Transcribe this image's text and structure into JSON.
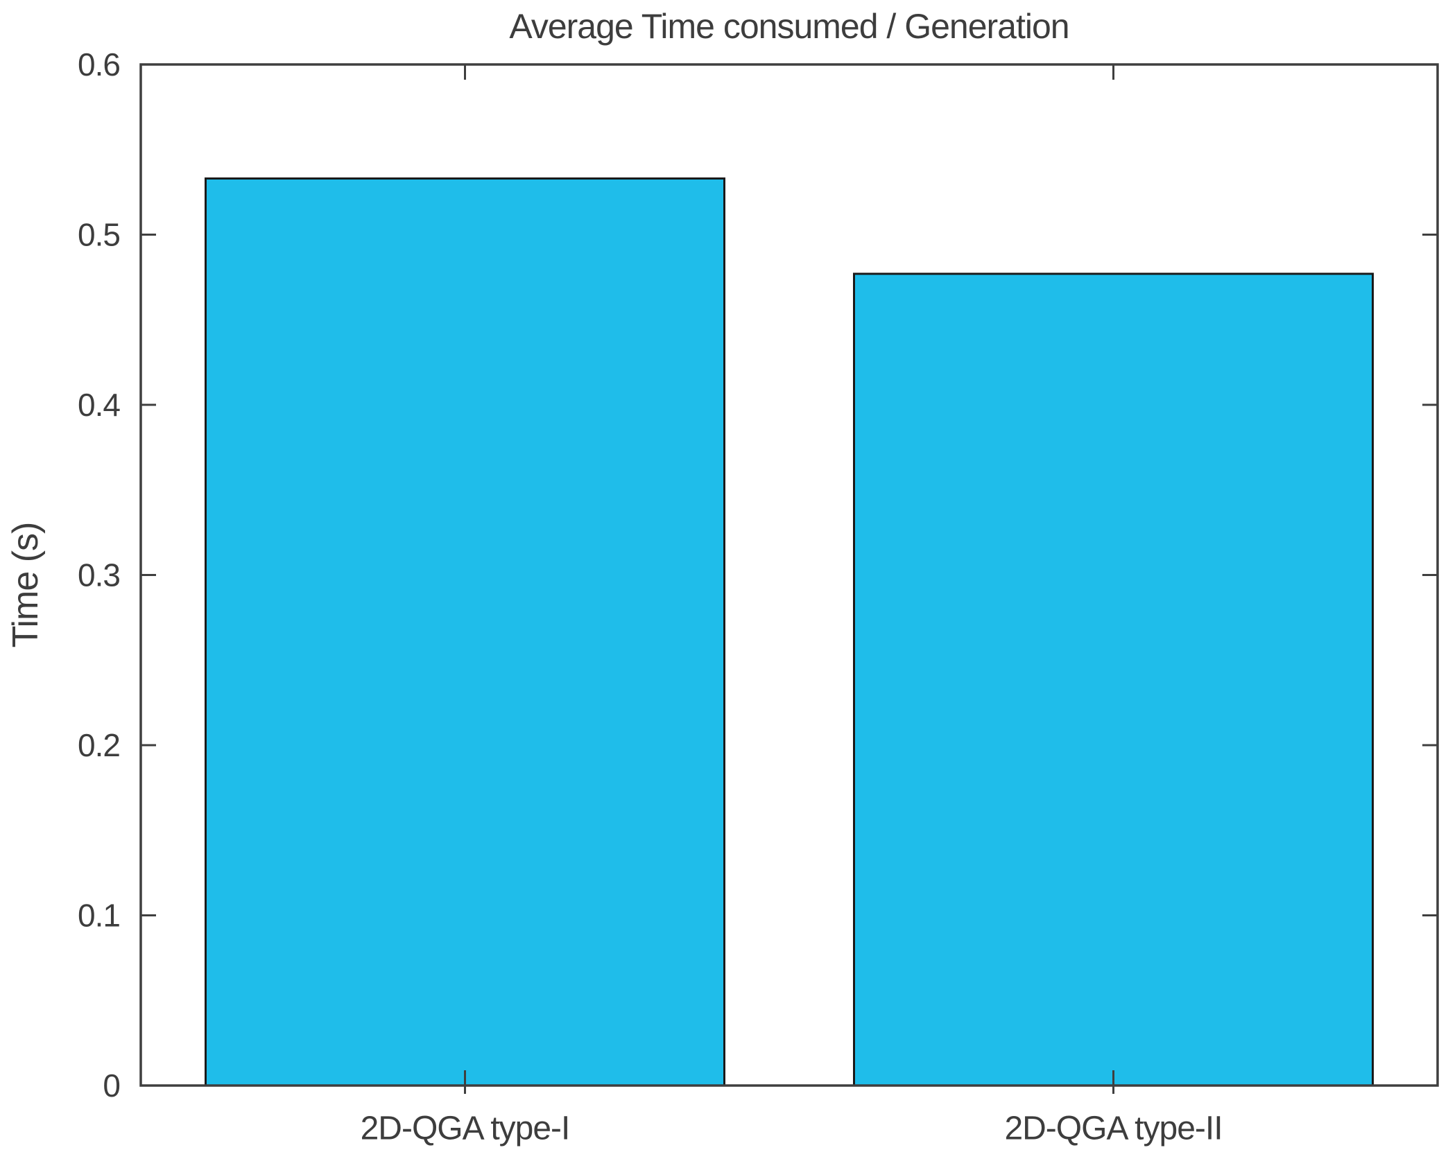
{
  "chart_data": {
    "type": "bar",
    "title": "Average Time consumed / Generation",
    "xlabel": "",
    "ylabel": "Time (s)",
    "categories": [
      "2D-QGA type-I",
      "2D-QGA type-II"
    ],
    "values": [
      0.533,
      0.477
    ],
    "ylim": [
      0,
      0.6
    ],
    "yticks": [
      0,
      0.1,
      0.2,
      0.3,
      0.4,
      0.5,
      0.6
    ],
    "ytick_labels": [
      "0",
      "0.1",
      "0.2",
      "0.3",
      "0.4",
      "0.5",
      "0.6"
    ],
    "bar_relative_width": 0.8,
    "bar_color": "#1FBDEA",
    "bar_edge_color": "#1a1a1a",
    "axis_color": "#3f3f3f",
    "text_color": "#3d3d3d",
    "grid": false,
    "legend": null,
    "box": true,
    "tick_direction": "in"
  }
}
